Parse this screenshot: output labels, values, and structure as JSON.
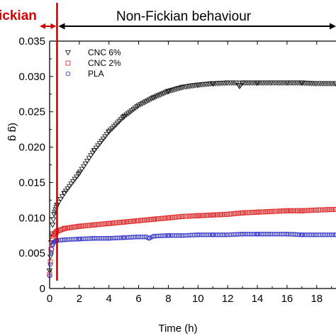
{
  "chart_data": {
    "type": "scatter",
    "xlabel": "Time (h)",
    "ylabel": "",
    "xlim": [
      0,
      19.3
    ],
    "ylim": [
      0,
      0.035
    ],
    "x_ticks": [
      0,
      2,
      4,
      6,
      8,
      10,
      12,
      14,
      16,
      18
    ],
    "x_tick_labels": [
      "0",
      "2",
      "4",
      "6",
      "8",
      "10",
      "12",
      "14",
      "16",
      "18"
    ],
    "y_ticks": [
      0,
      0.005,
      0.01,
      0.015,
      0.02,
      0.025,
      0.03,
      0.035
    ],
    "y_tick_labels": [
      "0",
      "0.005",
      "0.010",
      "0.015",
      "0.020",
      "0.025",
      "0.030",
      "0.035"
    ],
    "y_axis_fragment": "(g g",
    "regions": {
      "fickian_label": "ickian",
      "non_fickian_label": "Non-Fickian behaviour",
      "boundary_x": 0.5,
      "fickian_color": "#d40000",
      "non_fickian_color": "#000000"
    },
    "legend_position": "top-left",
    "series": [
      {
        "name": "CNC 6%",
        "marker": "triangle-down",
        "color": "#222222",
        "x": [
          0.0,
          0.1,
          0.2,
          0.3,
          0.5,
          1,
          2,
          3,
          4,
          5,
          6,
          7,
          8,
          9,
          10,
          11,
          12,
          12.6,
          12.8,
          13,
          14,
          15,
          16,
          17,
          18,
          19.3
        ],
        "y": [
          0.0025,
          0.0065,
          0.009,
          0.0105,
          0.0118,
          0.0135,
          0.0163,
          0.0195,
          0.0222,
          0.0243,
          0.0259,
          0.027,
          0.0279,
          0.0285,
          0.0288,
          0.029,
          0.0291,
          0.0291,
          0.0286,
          0.0291,
          0.0291,
          0.0291,
          0.0291,
          0.0291,
          0.029,
          0.029
        ]
      },
      {
        "name": "CNC 2%",
        "marker": "square",
        "color": "#e03030",
        "x": [
          0.0,
          0.1,
          0.2,
          0.3,
          0.5,
          1,
          2,
          3,
          4,
          5,
          6,
          7,
          8,
          9,
          10,
          11,
          12,
          13,
          14,
          15,
          16,
          17,
          18,
          19.3
        ],
        "y": [
          0.002,
          0.0055,
          0.007,
          0.0077,
          0.0081,
          0.0085,
          0.0088,
          0.009,
          0.0092,
          0.0094,
          0.0096,
          0.0098,
          0.01,
          0.0102,
          0.0103,
          0.0104,
          0.0105,
          0.0107,
          0.0108,
          0.0109,
          0.011,
          0.011,
          0.0111,
          0.0112
        ]
      },
      {
        "name": "PLA",
        "marker": "circle",
        "color": "#3a3ad0",
        "x": [
          0.0,
          0.1,
          0.2,
          0.3,
          0.5,
          1,
          2,
          3,
          4,
          5,
          6,
          6.5,
          6.7,
          7,
          8,
          9,
          10,
          11,
          12,
          13,
          14,
          15,
          16,
          17,
          18,
          19.3
        ],
        "y": [
          0.0018,
          0.005,
          0.0062,
          0.0066,
          0.0068,
          0.0069,
          0.007,
          0.0071,
          0.0071,
          0.0072,
          0.0073,
          0.0073,
          0.0071,
          0.0074,
          0.0075,
          0.0075,
          0.0076,
          0.0076,
          0.0076,
          0.0077,
          0.0077,
          0.0077,
          0.0077,
          0.0076,
          0.0076,
          0.0076
        ]
      }
    ]
  }
}
